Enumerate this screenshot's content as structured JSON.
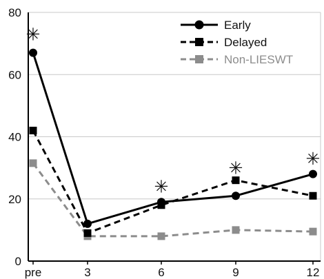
{
  "chart_data": {
    "type": "line",
    "title": "",
    "xlabel": "",
    "ylabel": "",
    "categories": [
      "pre",
      "3",
      "6",
      "9",
      "12"
    ],
    "ylim": [
      0,
      80
    ],
    "yticks": [
      0,
      20,
      40,
      60,
      80
    ],
    "grid": "horizontal",
    "legend_position": "top-right",
    "series": [
      {
        "name": "Early",
        "values": [
          67,
          12,
          19,
          21,
          28
        ],
        "color": "#000000",
        "line_style": "solid",
        "marker": "circle"
      },
      {
        "name": "Delayed",
        "values": [
          42,
          9,
          18,
          26,
          21
        ],
        "color": "#000000",
        "line_style": "dashed",
        "marker": "square"
      },
      {
        "name": "Non-LIESWT",
        "values": [
          31.5,
          8,
          8,
          10,
          9.5
        ],
        "color": "#8c8c8c",
        "line_style": "dashed",
        "marker": "square"
      }
    ],
    "annotations": [
      {
        "text": "✳",
        "category": "pre",
        "y": 73
      },
      {
        "text": "✳",
        "category": "6",
        "y": 24
      },
      {
        "text": "✳",
        "category": "9",
        "y": 30
      },
      {
        "text": "✳",
        "category": "12",
        "y": 33
      }
    ]
  }
}
